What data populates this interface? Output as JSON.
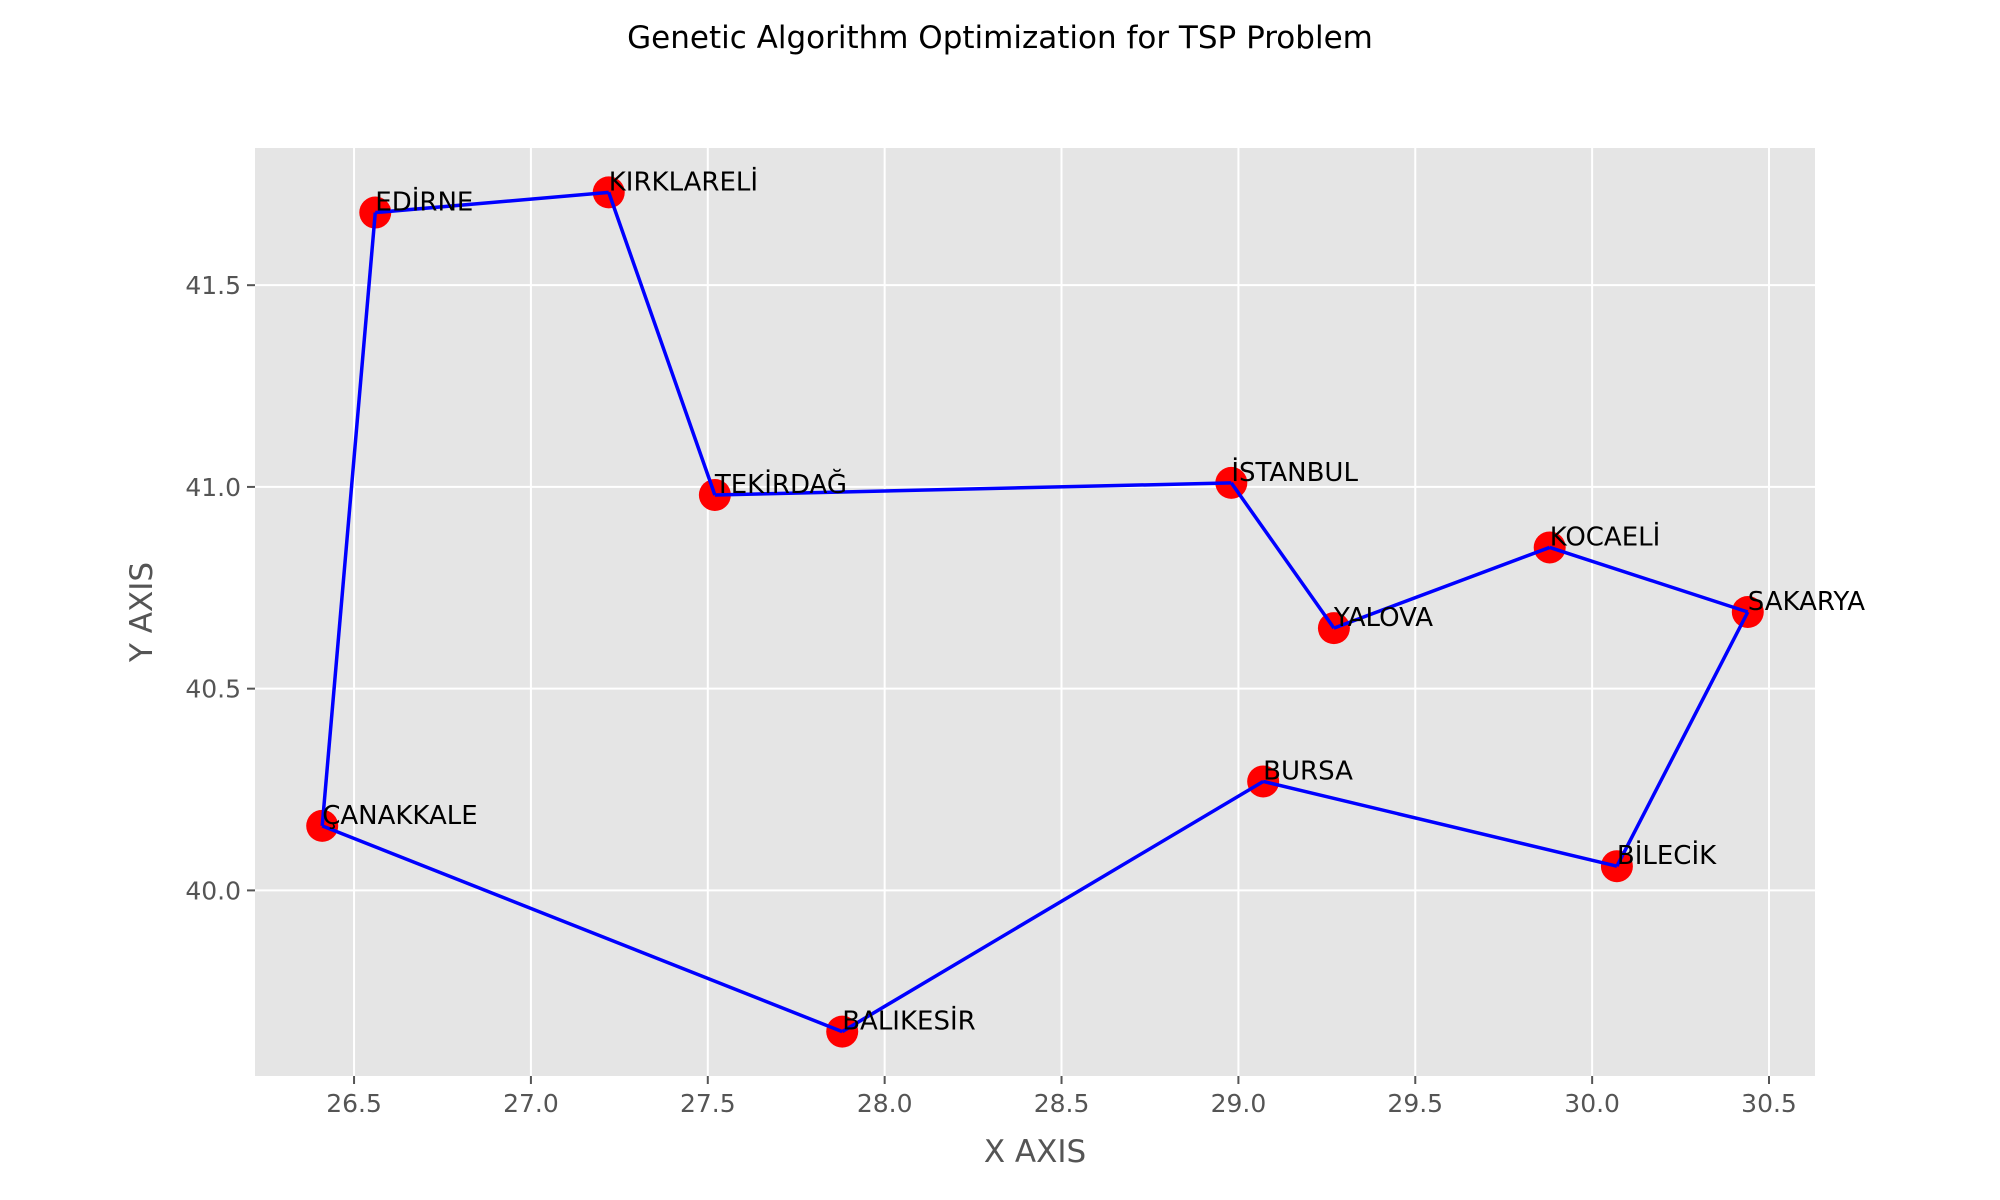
{
  "chart_data": {
    "type": "scatter",
    "title": "Genetic Algorithm Optimization for TSP Problem",
    "xlabel": "X AXIS",
    "ylabel": "Y AXIS",
    "xlim": [
      26.22,
      30.63
    ],
    "ylim": [
      39.54,
      41.84
    ],
    "xticks": [
      26.5,
      27.0,
      27.5,
      28.0,
      28.5,
      29.0,
      29.5,
      30.0,
      30.5
    ],
    "xtick_labels": [
      "26.5",
      "27.0",
      "27.5",
      "28.0",
      "28.5",
      "29.0",
      "29.5",
      "30.0",
      "30.5"
    ],
    "yticks": [
      40.0,
      40.5,
      41.0,
      41.5
    ],
    "ytick_labels": [
      "40.0",
      "40.5",
      "41.0",
      "41.5"
    ],
    "grid": true,
    "point_color": "#ff0000",
    "route_color": "#0000ff",
    "plot_background": "#e5e5e5",
    "points": [
      {
        "name": "EDİRNE",
        "x": 26.56,
        "y": 41.68
      },
      {
        "name": "KIRKLARELİ",
        "x": 27.22,
        "y": 41.73
      },
      {
        "name": "TEKİRDAĞ",
        "x": 27.52,
        "y": 40.98
      },
      {
        "name": "İSTANBUL",
        "x": 28.98,
        "y": 41.01
      },
      {
        "name": "YALOVA",
        "x": 29.27,
        "y": 40.65
      },
      {
        "name": "KOCAELİ",
        "x": 29.88,
        "y": 40.85
      },
      {
        "name": "SAKARYA",
        "x": 30.44,
        "y": 40.69
      },
      {
        "name": "BİLECİK",
        "x": 30.07,
        "y": 40.06
      },
      {
        "name": "BURSA",
        "x": 29.07,
        "y": 40.27
      },
      {
        "name": "BALIKESİR",
        "x": 27.88,
        "y": 39.65
      },
      {
        "name": "ÇANAKKALE",
        "x": 26.41,
        "y": 40.16
      }
    ],
    "route": [
      "EDİRNE",
      "KIRKLARELİ",
      "TEKİRDAĞ",
      "İSTANBUL",
      "YALOVA",
      "KOCAELİ",
      "SAKARYA",
      "BİLECİK",
      "BURSA",
      "BALIKESİR",
      "ÇANAKKALE",
      "EDİRNE"
    ]
  }
}
